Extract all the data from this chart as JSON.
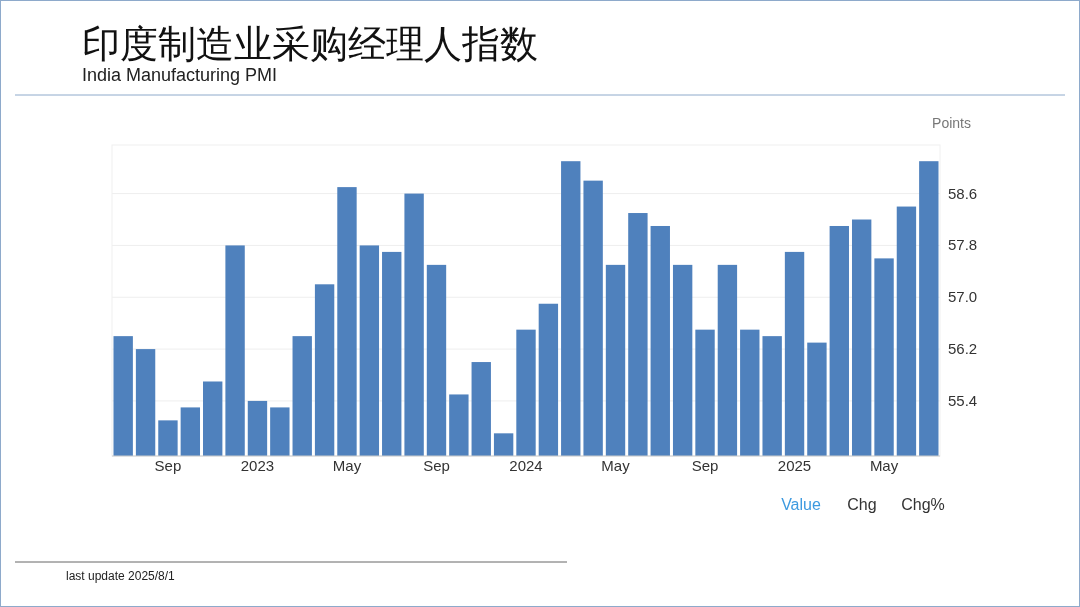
{
  "chart_data": {
    "type": "bar",
    "title": "印度制造业采购经理人指数",
    "subtitle": "India Manufacturing PMI",
    "ylabel": "Points",
    "categories": [
      null,
      null,
      "Sep",
      null,
      null,
      null,
      "2023",
      null,
      null,
      null,
      "May",
      null,
      null,
      null,
      "Sep",
      null,
      null,
      null,
      "2024",
      null,
      null,
      null,
      "May",
      null,
      null,
      null,
      "Sep",
      null,
      null,
      null,
      "2025",
      null,
      null,
      null,
      "May",
      null,
      null
    ],
    "values": [
      56.4,
      56.2,
      55.1,
      55.3,
      55.7,
      57.8,
      55.4,
      55.3,
      56.4,
      57.2,
      58.7,
      57.8,
      57.7,
      58.6,
      57.5,
      55.5,
      56.0,
      54.9,
      56.5,
      56.9,
      59.1,
      58.8,
      57.5,
      58.3,
      58.1,
      57.5,
      56.5,
      57.5,
      56.5,
      56.4,
      57.7,
      56.3,
      58.1,
      58.2,
      57.6,
      58.4,
      59.1
    ],
    "color": "#4f81bd",
    "ylim": [
      54.55,
      59.35
    ],
    "yticks": [
      55.4,
      56.2,
      {
        "value": 57.0,
        "label": "57.0"
      },
      57.8,
      58.6
    ],
    "grid": "y",
    "annotations": [
      "Value",
      "Chg",
      "Chg%",
      "last update 2025/8/1"
    ]
  }
}
